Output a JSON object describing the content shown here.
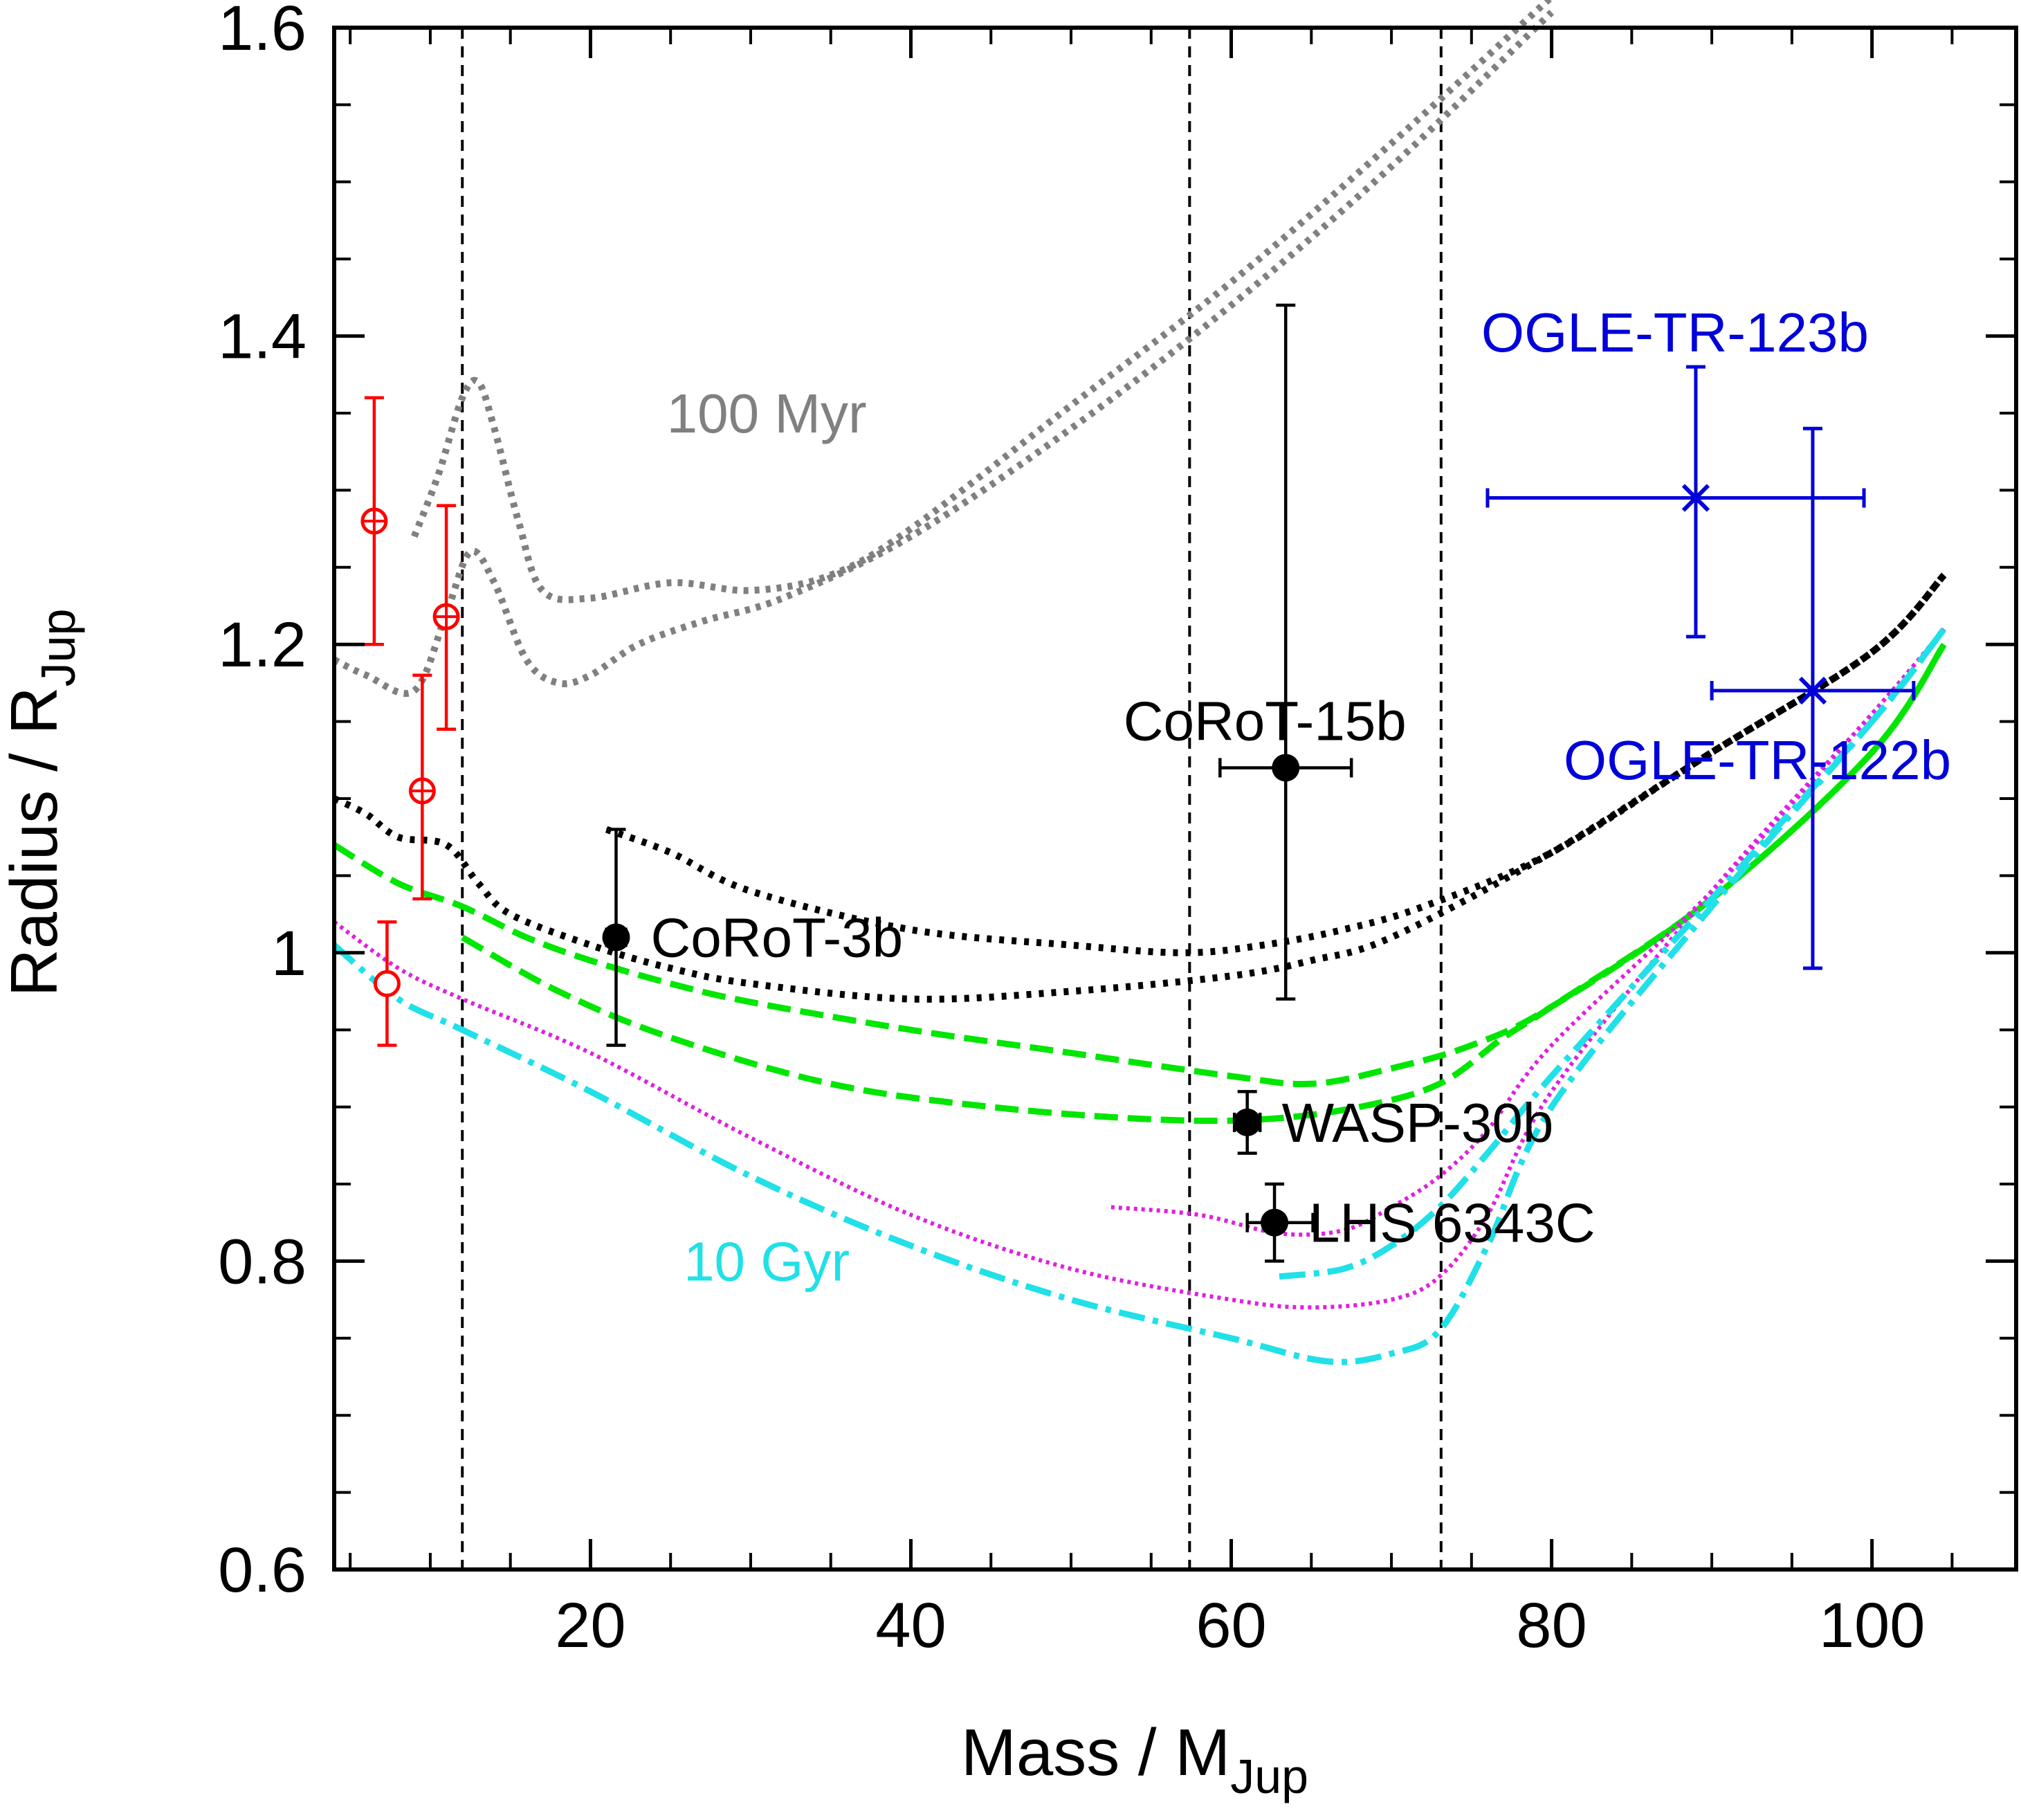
{
  "chart_data": {
    "type": "scatter",
    "xlabel": "Mass / M",
    "xlabel_sub": "Jup",
    "ylabel": "Radius / R",
    "ylabel_sub": "Jup",
    "xlim": [
      4,
      109
    ],
    "ylim": [
      0.6,
      1.6
    ],
    "x_ticks": [
      20,
      40,
      60,
      80,
      100
    ],
    "y_ticks": [
      0.6,
      0.8,
      1.0,
      1.2,
      1.4,
      1.6
    ],
    "y_tick_labels": [
      "0.6",
      "0.8",
      "1",
      "1.2",
      "1.4",
      "1.6"
    ],
    "x_minor_step": 5,
    "y_minor_step": 0.05,
    "grid": false,
    "vlines": [
      12,
      57.4,
      73.1
    ],
    "annotations": [
      {
        "text": "100 Myr",
        "x": 31,
        "y": 1.35,
        "color": "#808080"
      },
      {
        "text": "10 Gyr",
        "x": 31,
        "y": 0.8,
        "color": "#20e0e8"
      }
    ],
    "series": [
      {
        "style": "dotted-gray",
        "color": "#808080",
        "values": [
          [
            4,
            1.19
          ],
          [
            6,
            1.18
          ],
          [
            9,
            1.17
          ],
          [
            11,
            1.22
          ],
          [
            12.5,
            1.26
          ],
          [
            14,
            1.24
          ],
          [
            16,
            1.19
          ],
          [
            18,
            1.175
          ],
          [
            20,
            1.18
          ],
          [
            23,
            1.2
          ],
          [
            27,
            1.215
          ],
          [
            32,
            1.23
          ],
          [
            40,
            1.27
          ],
          [
            50,
            1.34
          ],
          [
            60,
            1.42
          ],
          [
            70,
            1.51
          ],
          [
            80,
            1.61
          ]
        ]
      },
      {
        "style": "dotted-gray",
        "color": "#808080",
        "values": [
          [
            9,
            1.27
          ],
          [
            10.5,
            1.31
          ],
          [
            12,
            1.36
          ],
          [
            13,
            1.37
          ],
          [
            14,
            1.34
          ],
          [
            15.5,
            1.28
          ],
          [
            17,
            1.235
          ],
          [
            20,
            1.23
          ],
          [
            25,
            1.24
          ],
          [
            30,
            1.235
          ],
          [
            35,
            1.245
          ],
          [
            40,
            1.275
          ],
          [
            50,
            1.355
          ],
          [
            60,
            1.435
          ],
          [
            70,
            1.525
          ],
          [
            80,
            1.62
          ]
        ]
      },
      {
        "style": "dotted-black",
        "color": "#000000",
        "values": [
          [
            4,
            1.1
          ],
          [
            6,
            1.09
          ],
          [
            8,
            1.075
          ],
          [
            11,
            1.07
          ],
          [
            13,
            1.045
          ],
          [
            15,
            1.025
          ],
          [
            20,
            1.005
          ],
          [
            25,
            0.99
          ],
          [
            30,
            0.98
          ],
          [
            40,
            0.97
          ],
          [
            50,
            0.975
          ],
          [
            60,
            0.985
          ],
          [
            65,
            0.995
          ],
          [
            70,
            1.01
          ],
          [
            80,
            1.065
          ],
          [
            90,
            1.13
          ],
          [
            100,
            1.195
          ],
          [
            104.5,
            1.245
          ]
        ]
      },
      {
        "style": "dotted-black",
        "color": "#000000",
        "values": [
          [
            21,
            1.08
          ],
          [
            25,
            1.065
          ],
          [
            30,
            1.04
          ],
          [
            40,
            1.015
          ],
          [
            50,
            1.005
          ],
          [
            57,
            1.0
          ],
          [
            62,
            1.005
          ],
          [
            67,
            1.015
          ],
          [
            72,
            1.03
          ],
          [
            80,
            1.065
          ],
          [
            90,
            1.13
          ],
          [
            100,
            1.195
          ],
          [
            104.5,
            1.245
          ]
        ]
      },
      {
        "style": "dashed-green",
        "color": "#00e600",
        "values": [
          [
            4,
            1.07
          ],
          [
            8,
            1.045
          ],
          [
            12,
            1.03
          ],
          [
            16,
            1.01
          ],
          [
            20,
            0.995
          ],
          [
            25,
            0.98
          ],
          [
            30,
            0.968
          ],
          [
            40,
            0.95
          ],
          [
            50,
            0.935
          ],
          [
            60,
            0.92
          ],
          [
            65,
            0.915
          ],
          [
            70,
            0.925
          ],
          [
            75,
            0.94
          ],
          [
            80,
            0.965
          ],
          [
            90,
            1.035
          ],
          [
            100,
            1.13
          ],
          [
            104.5,
            1.2
          ]
        ]
      },
      {
        "style": "dashed-green",
        "color": "#00e600",
        "values": [
          [
            12,
            1.01
          ],
          [
            18,
            0.975
          ],
          [
            25,
            0.945
          ],
          [
            35,
            0.915
          ],
          [
            45,
            0.9
          ],
          [
            55,
            0.892
          ],
          [
            62,
            0.892
          ],
          [
            68,
            0.9
          ],
          [
            73,
            0.915
          ],
          [
            77,
            0.945
          ],
          [
            80,
            0.965
          ],
          [
            90,
            1.035
          ],
          [
            100,
            1.13
          ],
          [
            104.5,
            1.2
          ]
        ]
      },
      {
        "style": "dotted-magenta",
        "color": "#e020e0",
        "values": [
          [
            4,
            1.02
          ],
          [
            8,
            0.99
          ],
          [
            12,
            0.97
          ],
          [
            20,
            0.935
          ],
          [
            30,
            0.88
          ],
          [
            40,
            0.83
          ],
          [
            50,
            0.795
          ],
          [
            60,
            0.775
          ],
          [
            65,
            0.77
          ],
          [
            70,
            0.775
          ],
          [
            73,
            0.79
          ],
          [
            76,
            0.83
          ],
          [
            80,
            0.91
          ],
          [
            90,
            1.04
          ],
          [
            100,
            1.155
          ],
          [
            104.5,
            1.21
          ]
        ]
      },
      {
        "style": "dotted-magenta",
        "color": "#e020e0",
        "values": [
          [
            52.5,
            0.835
          ],
          [
            58,
            0.83
          ],
          [
            63,
            0.818
          ],
          [
            67,
            0.82
          ],
          [
            70,
            0.835
          ],
          [
            73,
            0.855
          ],
          [
            76,
            0.885
          ],
          [
            80,
            0.94
          ],
          [
            90,
            1.04
          ],
          [
            100,
            1.155
          ],
          [
            104.5,
            1.21
          ]
        ]
      },
      {
        "style": "dashdot-cyan",
        "color": "#20e0e8",
        "values": [
          [
            4,
            1.005
          ],
          [
            8,
            0.97
          ],
          [
            12,
            0.95
          ],
          [
            20,
            0.91
          ],
          [
            30,
            0.855
          ],
          [
            40,
            0.81
          ],
          [
            50,
            0.775
          ],
          [
            60,
            0.75
          ],
          [
            66,
            0.735
          ],
          [
            70,
            0.74
          ],
          [
            73,
            0.755
          ],
          [
            76,
            0.81
          ],
          [
            80,
            0.9
          ],
          [
            90,
            1.03
          ],
          [
            100,
            1.15
          ],
          [
            104.5,
            1.21
          ]
        ]
      },
      {
        "style": "dashdot-cyan",
        "color": "#20e0e8",
        "values": [
          [
            63,
            0.79
          ],
          [
            67,
            0.795
          ],
          [
            70,
            0.81
          ],
          [
            73,
            0.835
          ],
          [
            76,
            0.87
          ],
          [
            80,
            0.92
          ],
          [
            90,
            1.035
          ],
          [
            100,
            1.15
          ],
          [
            104.5,
            1.21
          ]
        ]
      }
    ],
    "points": [
      {
        "marker": "circle-plus",
        "color": "#ff0000",
        "x": 6.5,
        "y": 1.28,
        "y_err": [
          1.2,
          1.36
        ]
      },
      {
        "marker": "circle-plus",
        "color": "#ff0000",
        "x": 11.0,
        "y": 1.218,
        "y_err": [
          1.145,
          1.29
        ]
      },
      {
        "marker": "circle-plus",
        "color": "#ff0000",
        "x": 9.5,
        "y": 1.105,
        "y_err": [
          1.035,
          1.18
        ]
      },
      {
        "marker": "circle-open",
        "color": "#ff0000",
        "x": 7.3,
        "y": 0.98,
        "y_err": [
          0.94,
          1.02
        ]
      },
      {
        "marker": "filled",
        "color": "#000000",
        "label": "CoRoT-3b",
        "x": 21.6,
        "y": 1.01,
        "x_err": [
          21.0,
          22.2
        ],
        "y_err": [
          0.94,
          1.08
        ],
        "label_pos": "right"
      },
      {
        "marker": "filled",
        "color": "#000000",
        "label": "CoRoT-15b",
        "x": 63.4,
        "y": 1.12,
        "x_err": [
          59.3,
          67.5
        ],
        "y_err": [
          0.97,
          1.42
        ],
        "label_pos": "above"
      },
      {
        "marker": "filled",
        "color": "#000000",
        "label": "WASP-30b",
        "x": 61.0,
        "y": 0.89,
        "x_err": [
          60.2,
          61.8
        ],
        "y_err": [
          0.87,
          0.91
        ],
        "label_pos": "right"
      },
      {
        "marker": "filled",
        "color": "#000000",
        "label": "LHS 6343C",
        "x": 62.7,
        "y": 0.825,
        "x_err": [
          61.0,
          65.1
        ],
        "y_err": [
          0.8,
          0.85
        ],
        "label_pos": "right"
      },
      {
        "marker": "cross",
        "color": "#0000d8",
        "label": "OGLE-TR-123b",
        "x": 89.0,
        "y": 1.295,
        "x_err": [
          76.0,
          99.5
        ],
        "y_err": [
          1.205,
          1.38
        ],
        "label_pos": "above"
      },
      {
        "marker": "cross",
        "color": "#0000d8",
        "label": "OGLE-TR-122b",
        "x": 96.3,
        "y": 1.17,
        "x_err": [
          90.0,
          102.6
        ],
        "y_err": [
          0.99,
          1.34
        ],
        "label_pos": "below"
      }
    ]
  }
}
